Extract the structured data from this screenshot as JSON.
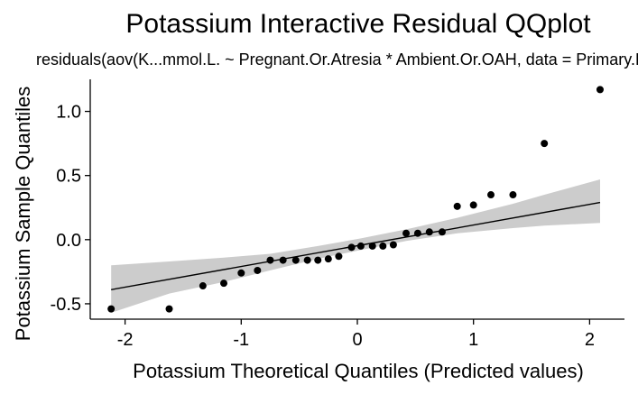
{
  "chart_data": {
    "type": "scatter",
    "title": "Potassium Interactive Residual QQplot",
    "subtitle": "residuals(aov(K...mmol.L. ~ Pregnant.Or.Atresia * Ambient.Or.OAH, data = Primary.Data))",
    "xlabel": "Potassium Theoretical Quantiles (Predicted values)",
    "ylabel": "Potassium Sample Quantiles",
    "xlim": [
      -2.3,
      2.3
    ],
    "ylim": [
      -0.62,
      1.25
    ],
    "xticks": [
      -2,
      -1,
      0,
      1,
      2
    ],
    "yticks": [
      -0.5,
      0.0,
      0.5,
      1.0
    ],
    "xtick_labels": [
      "-2",
      "-1",
      "0",
      "1",
      "2"
    ],
    "ytick_labels": [
      "-0.5",
      "0.0",
      "0.5",
      "1.0"
    ],
    "grid": false,
    "points": [
      {
        "x": -2.12,
        "y": -0.54
      },
      {
        "x": -1.62,
        "y": -0.54
      },
      {
        "x": -1.33,
        "y": -0.36
      },
      {
        "x": -1.15,
        "y": -0.34
      },
      {
        "x": -1.0,
        "y": -0.26
      },
      {
        "x": -0.86,
        "y": -0.24
      },
      {
        "x": -0.75,
        "y": -0.16
      },
      {
        "x": -0.64,
        "y": -0.16
      },
      {
        "x": -0.53,
        "y": -0.16
      },
      {
        "x": -0.43,
        "y": -0.16
      },
      {
        "x": -0.34,
        "y": -0.16
      },
      {
        "x": -0.25,
        "y": -0.15
      },
      {
        "x": -0.16,
        "y": -0.13
      },
      {
        "x": -0.05,
        "y": -0.06
      },
      {
        "x": 0.03,
        "y": -0.05
      },
      {
        "x": 0.13,
        "y": -0.05
      },
      {
        "x": 0.22,
        "y": -0.05
      },
      {
        "x": 0.31,
        "y": -0.04
      },
      {
        "x": 0.42,
        "y": 0.05
      },
      {
        "x": 0.52,
        "y": 0.05
      },
      {
        "x": 0.62,
        "y": 0.06
      },
      {
        "x": 0.73,
        "y": 0.06
      },
      {
        "x": 0.86,
        "y": 0.26
      },
      {
        "x": 1.0,
        "y": 0.27
      },
      {
        "x": 1.15,
        "y": 0.35
      },
      {
        "x": 1.34,
        "y": 0.35
      },
      {
        "x": 1.61,
        "y": 0.75
      },
      {
        "x": 2.09,
        "y": 1.17
      }
    ],
    "reference_line": {
      "x": [
        -2.12,
        2.09
      ],
      "y": [
        -0.39,
        0.29
      ]
    },
    "confidence_band": {
      "x": [
        -2.12,
        -1.62,
        -1.15,
        -0.75,
        -0.34,
        0.03,
        0.42,
        0.86,
        1.34,
        1.61,
        2.09
      ],
      "lower": [
        -0.57,
        -0.42,
        -0.33,
        -0.24,
        -0.15,
        -0.08,
        -0.01,
        0.05,
        0.09,
        0.11,
        0.13
      ],
      "upper": [
        -0.2,
        -0.17,
        -0.14,
        -0.11,
        -0.05,
        0.01,
        0.08,
        0.17,
        0.28,
        0.35,
        0.47
      ]
    },
    "colors": {
      "points": "#000000",
      "line": "#000000",
      "band": "#cccccc",
      "axis": "#000000"
    }
  }
}
